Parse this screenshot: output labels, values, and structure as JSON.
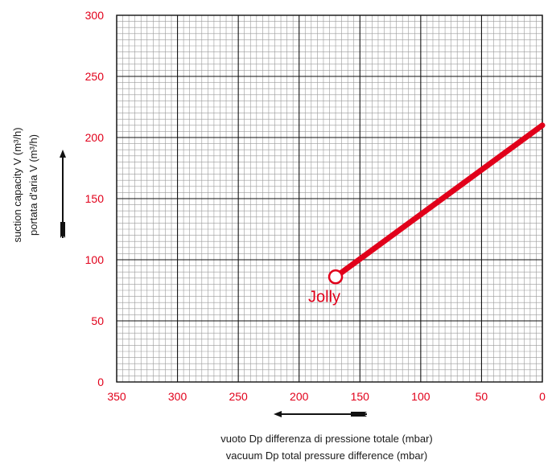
{
  "chart_data": {
    "type": "line",
    "title": "",
    "x_axis": {
      "label_lines": [
        "vuoto Dp differenza di pressione totale (mbar)",
        "vacuum Dp total pressure difference (mbar)"
      ],
      "range": [
        350,
        0
      ],
      "reversed": true,
      "ticks": [
        350,
        300,
        250,
        200,
        150,
        100,
        50,
        0
      ]
    },
    "y_axis": {
      "label_lines": [
        "suction capacity V (m³/h)",
        "portata d'aria V (m³/h)"
      ],
      "range": [
        0,
        300
      ],
      "ticks": [
        0,
        50,
        100,
        150,
        200,
        250,
        300
      ]
    },
    "grid": {
      "major": true,
      "minor": true
    },
    "series": [
      {
        "name": "Jolly",
        "color": "#e1001a",
        "points": [
          {
            "x": 170,
            "y": 86
          },
          {
            "x": 0,
            "y": 210
          }
        ]
      }
    ]
  },
  "colors": {
    "accent": "#e1001a",
    "grid_major": "#111111",
    "grid_minor": "#9a9a9a",
    "arrow": "#111111"
  }
}
